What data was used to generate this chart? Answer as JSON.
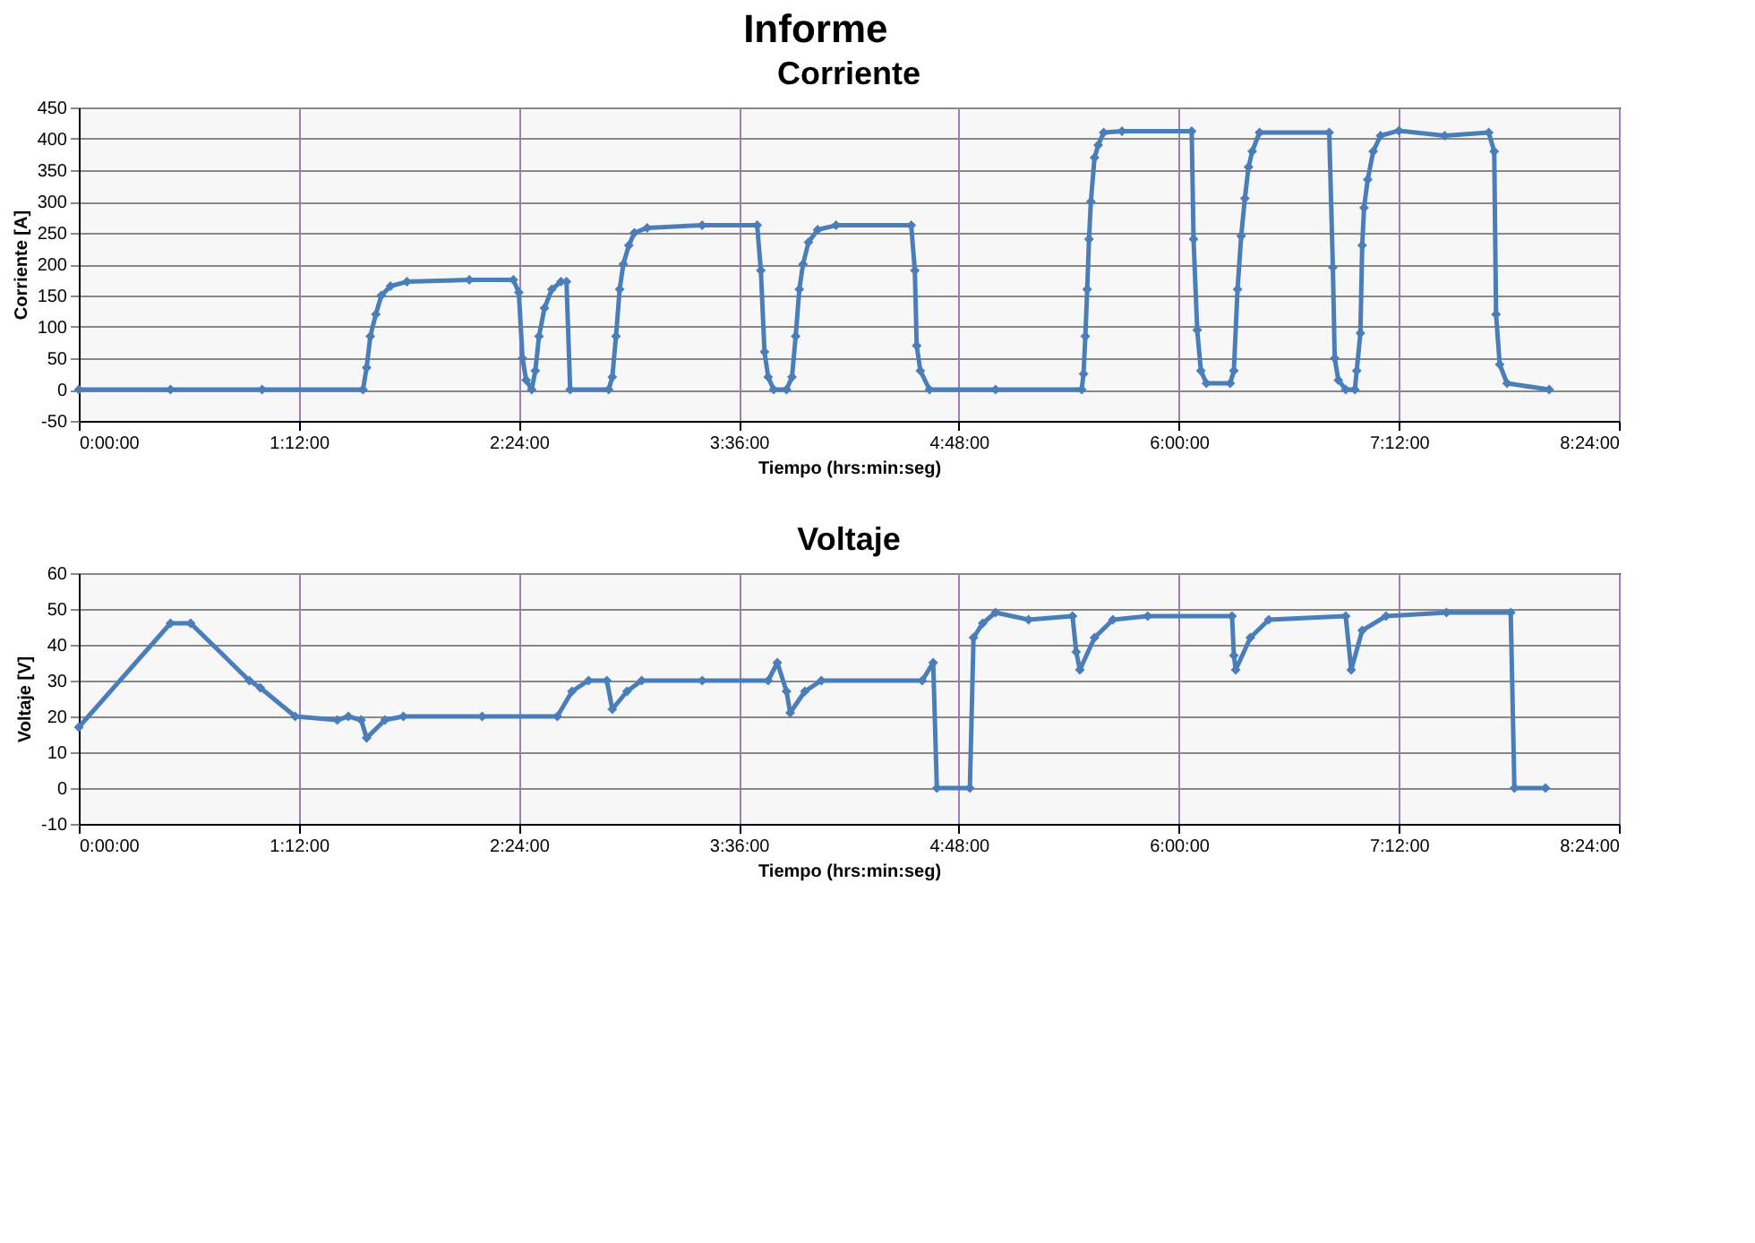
{
  "chart_data": [
    {
      "type": "line",
      "title": "Corriente",
      "xlabel": "Tiempo (hrs:min:seg)",
      "ylabel": "Corriente [A]",
      "annotations": [
        "Informe"
      ],
      "xlim": [
        0,
        8.4
      ],
      "xticks": [
        {
          "value": 0,
          "label": "0:00:00"
        },
        {
          "value": 1.2,
          "label": "1:12:00"
        },
        {
          "value": 2.4,
          "label": "2:24:00"
        },
        {
          "value": 3.6,
          "label": "3:36:00"
        },
        {
          "value": 4.8,
          "label": "4:48:00"
        },
        {
          "value": 6.0,
          "label": "6:00:00"
        },
        {
          "value": 7.2,
          "label": "7:12:00"
        },
        {
          "value": 8.4,
          "label": "8:24:00"
        }
      ],
      "ylim": [
        -50,
        450
      ],
      "yticks": [
        -50,
        0,
        50,
        100,
        150,
        200,
        250,
        300,
        350,
        400,
        450
      ],
      "grid": true,
      "marker": "diamond",
      "line_style": "solid",
      "series": [
        {
          "color": "#4a7ebb",
          "x": [
            0,
            0.5,
            1.0,
            1.55,
            1.57,
            1.59,
            1.62,
            1.65,
            1.7,
            1.79,
            2.13,
            2.37,
            2.4,
            2.42,
            2.44,
            2.47,
            2.49,
            2.51,
            2.54,
            2.58,
            2.63,
            2.66,
            2.68,
            2.89,
            2.91,
            2.93,
            2.95,
            2.97,
            3.0,
            3.03,
            3.1,
            3.4,
            3.7,
            3.72,
            3.74,
            3.76,
            3.79,
            3.86,
            3.89,
            3.91,
            3.93,
            3.95,
            3.98,
            4.03,
            4.13,
            4.54,
            4.56,
            4.57,
            4.59,
            4.64,
            5.0,
            5.47,
            5.48,
            5.49,
            5.5,
            5.51,
            5.52,
            5.54,
            5.56,
            5.59,
            5.69,
            6.07,
            6.08,
            6.1,
            6.12,
            6.15,
            6.28,
            6.3,
            6.32,
            6.34,
            6.36,
            6.38,
            6.4,
            6.44,
            6.82,
            6.84,
            6.85,
            6.87,
            6.91,
            6.96,
            6.97,
            6.99,
            7.0,
            7.01,
            7.03,
            7.06,
            7.1,
            7.2,
            7.45,
            7.69,
            7.72,
            7.73,
            7.75,
            7.79,
            8.02
          ],
          "values": [
            0,
            0,
            0,
            0,
            35,
            85,
            120,
            150,
            165,
            172,
            175,
            175,
            155,
            50,
            15,
            0,
            30,
            85,
            130,
            160,
            172,
            172,
            0,
            0,
            20,
            85,
            160,
            200,
            230,
            250,
            258,
            262,
            262,
            190,
            60,
            20,
            0,
            0,
            20,
            85,
            160,
            200,
            235,
            255,
            262,
            262,
            190,
            70,
            30,
            0,
            0,
            0,
            25,
            85,
            160,
            240,
            300,
            370,
            390,
            410,
            412,
            412,
            240,
            95,
            30,
            10,
            10,
            30,
            160,
            245,
            305,
            355,
            380,
            410,
            410,
            195,
            50,
            15,
            0,
            0,
            30,
            90,
            230,
            290,
            335,
            380,
            405,
            413,
            405,
            410,
            380,
            120,
            40,
            10,
            0
          ]
        }
      ]
    },
    {
      "type": "line",
      "title": "Voltaje",
      "xlabel": "Tiempo (hrs:min:seg)",
      "ylabel": "Voltaje [V]",
      "xlim": [
        0,
        8.4
      ],
      "xticks": [
        {
          "value": 0,
          "label": "0:00:00"
        },
        {
          "value": 1.2,
          "label": "1:12:00"
        },
        {
          "value": 2.4,
          "label": "2:24:00"
        },
        {
          "value": 3.6,
          "label": "3:36:00"
        },
        {
          "value": 4.8,
          "label": "4:48:00"
        },
        {
          "value": 6.0,
          "label": "6:00:00"
        },
        {
          "value": 7.2,
          "label": "7:12:00"
        },
        {
          "value": 8.4,
          "label": "8:24:00"
        }
      ],
      "ylim": [
        -10,
        60
      ],
      "yticks": [
        -10,
        0,
        10,
        20,
        30,
        40,
        50,
        60
      ],
      "grid": true,
      "marker": "diamond",
      "line_style": "solid",
      "series": [
        {
          "color": "#4a7ebb",
          "x": [
            0,
            0.5,
            0.61,
            0.93,
            0.99,
            1.18,
            1.41,
            1.47,
            1.54,
            1.57,
            1.67,
            1.77,
            2.2,
            2.61,
            2.69,
            2.78,
            2.88,
            2.91,
            2.99,
            3.07,
            3.4,
            3.76,
            3.81,
            3.86,
            3.88,
            3.96,
            4.05,
            4.6,
            4.66,
            4.68,
            4.86,
            4.88,
            4.93,
            5.0,
            5.18,
            5.42,
            5.44,
            5.46,
            5.54,
            5.64,
            5.83,
            6.29,
            6.3,
            6.31,
            6.39,
            6.49,
            6.91,
            6.94,
            7.0,
            7.13,
            7.46,
            7.81,
            7.83,
            8.0
          ],
          "values": [
            17,
            46,
            46,
            30,
            28,
            20,
            19,
            20,
            19,
            14,
            19,
            20,
            20,
            20,
            27,
            30,
            30,
            22,
            27,
            30,
            30,
            30,
            35,
            27,
            21,
            27,
            30,
            30,
            35,
            0,
            0,
            42,
            46,
            49,
            47,
            48,
            38,
            33,
            42,
            47,
            48,
            48,
            37,
            33,
            42,
            47,
            48,
            33,
            44,
            48,
            49,
            49,
            0,
            0
          ]
        }
      ]
    }
  ]
}
